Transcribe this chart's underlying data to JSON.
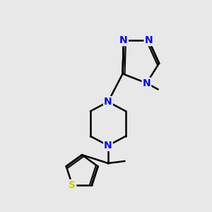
{
  "bg_color": "#e8e8e8",
  "bond_color": "#000000",
  "N_color": "#0000ff",
  "S_color": "#cccc00",
  "line_width": 1.8,
  "font_size_atom": 10,
  "fig_width": 3.0,
  "fig_height": 3.0,
  "dpi": 100,
  "xlim": [
    0,
    10
  ],
  "ylim": [
    0,
    10
  ]
}
